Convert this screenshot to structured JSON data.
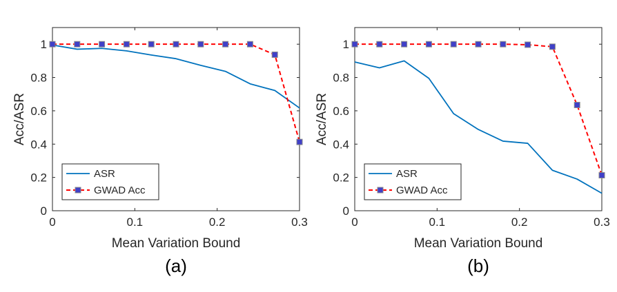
{
  "chart_data": [
    {
      "type": "line",
      "caption": "(a)",
      "title": "",
      "xlabel": "Mean Variation Bound",
      "ylabel": "Acc/ASR",
      "xlim": [
        0,
        0.3
      ],
      "ylim": [
        0,
        1.1
      ],
      "xticks": [
        0,
        0.1,
        0.2,
        0.3
      ],
      "xtick_labels": [
        "0",
        "0.1",
        "0.2",
        "0.3"
      ],
      "yticks": [
        0,
        0.2,
        0.4,
        0.6,
        0.8,
        1
      ],
      "ytick_labels": [
        "0",
        "0.2",
        "0.4",
        "0.6",
        "0.8",
        "1"
      ],
      "grid": false,
      "legend_position": "bottom-left",
      "x": [
        0,
        0.03,
        0.06,
        0.09,
        0.12,
        0.15,
        0.18,
        0.21,
        0.24,
        0.27,
        0.3
      ],
      "series": [
        {
          "name": "ASR",
          "color": "#0072BD",
          "style": "solid",
          "values": [
            0.995,
            0.97,
            0.975,
            0.96,
            0.935,
            0.913,
            0.873,
            0.837,
            0.762,
            0.722,
            0.617
          ]
        },
        {
          "name": "GWAD Acc",
          "color": "#FF0000",
          "marker_color": "#4040C8",
          "style": "dashed-square",
          "values": [
            1.0,
            1.0,
            1.0,
            1.0,
            1.0,
            1.0,
            1.0,
            1.0,
            1.0,
            0.937,
            0.413
          ]
        }
      ]
    },
    {
      "type": "line",
      "caption": "(b)",
      "title": "",
      "xlabel": "Mean Variation Bound",
      "ylabel": "Acc/ASR",
      "xlim": [
        0,
        0.3
      ],
      "ylim": [
        0,
        1.1
      ],
      "xticks": [
        0,
        0.1,
        0.2,
        0.3
      ],
      "xtick_labels": [
        "0",
        "0.1",
        "0.2",
        "0.3"
      ],
      "yticks": [
        0,
        0.2,
        0.4,
        0.6,
        0.8,
        1
      ],
      "ytick_labels": [
        "0",
        "0.2",
        "0.4",
        "0.6",
        "0.8",
        "1"
      ],
      "grid": false,
      "legend_position": "bottom-left",
      "x": [
        0,
        0.03,
        0.06,
        0.09,
        0.12,
        0.15,
        0.18,
        0.21,
        0.24,
        0.27,
        0.3
      ],
      "series": [
        {
          "name": "ASR",
          "color": "#0072BD",
          "style": "solid",
          "values": [
            0.893,
            0.858,
            0.9,
            0.795,
            0.583,
            0.488,
            0.418,
            0.405,
            0.243,
            0.19,
            0.105
          ]
        },
        {
          "name": "GWAD Acc",
          "color": "#FF0000",
          "marker_color": "#4040C8",
          "style": "dashed-square",
          "values": [
            1.0,
            1.0,
            1.0,
            1.0,
            1.0,
            1.0,
            1.0,
            0.997,
            0.985,
            0.635,
            0.213
          ]
        }
      ]
    }
  ]
}
